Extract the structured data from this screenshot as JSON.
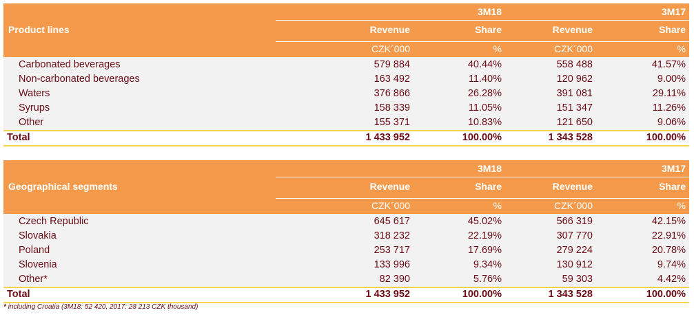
{
  "tables": [
    {
      "title": "Product lines",
      "period_a": "3M18",
      "period_b": "3M17",
      "col_revenue": "Revenue",
      "col_share": "Share",
      "unit_revenue": "CZK´000",
      "unit_share": "%",
      "rows": [
        {
          "label": "Carbonated beverages",
          "rev_a": "579 884",
          "share_a": "40.44%",
          "rev_b": "558 488",
          "share_b": "41.57%"
        },
        {
          "label": "Non-carbonated beverages",
          "rev_a": "163 492",
          "share_a": "11.40%",
          "rev_b": "120 962",
          "share_b": "9.00%"
        },
        {
          "label": "Waters",
          "rev_a": "376 866",
          "share_a": "26.28%",
          "rev_b": "391 081",
          "share_b": "29.11%"
        },
        {
          "label": "Syrups",
          "rev_a": "158 339",
          "share_a": "11.05%",
          "rev_b": "151 347",
          "share_b": "11.26%"
        },
        {
          "label": "Other",
          "rev_a": "155 371",
          "share_a": "10.83%",
          "rev_b": "121 650",
          "share_b": "9.06%"
        }
      ],
      "total": {
        "label": "Total",
        "rev_a": "1 433 952",
        "share_a": "100.00%",
        "rev_b": "1 343 528",
        "share_b": "100.00%"
      }
    },
    {
      "title": "Geographical segments",
      "period_a": "3M18",
      "period_b": "3M17",
      "col_revenue": "Revenue",
      "col_share": "Share",
      "unit_revenue": "CZK´000",
      "unit_share": "%",
      "rows": [
        {
          "label": "Czech Republic",
          "rev_a": "645 617",
          "share_a": "45.02%",
          "rev_b": "566 319",
          "share_b": "42.15%"
        },
        {
          "label": "Slovakia",
          "rev_a": "318 232",
          "share_a": "22.19%",
          "rev_b": "307 770",
          "share_b": "22.91%"
        },
        {
          "label": "Poland",
          "rev_a": "253 717",
          "share_a": "17.69%",
          "rev_b": "279 224",
          "share_b": "20.78%"
        },
        {
          "label": "Slovenia",
          "rev_a": "133 996",
          "share_a": "9.34%",
          "rev_b": "130 912",
          "share_b": "9.74%"
        },
        {
          "label": "Other*",
          "rev_a": "82 390",
          "share_a": "5.76%",
          "rev_b": "59 303",
          "share_b": "4.42%"
        }
      ],
      "total": {
        "label": "Total",
        "rev_a": "1 433 952",
        "share_a": "100.00%",
        "rev_b": "1 343 528",
        "share_b": "100.00%"
      }
    }
  ],
  "footnote": {
    "mark": "*",
    "text": " including Croatia (3M18: 52 420, 2017: 28 213 CZK thousand)"
  }
}
